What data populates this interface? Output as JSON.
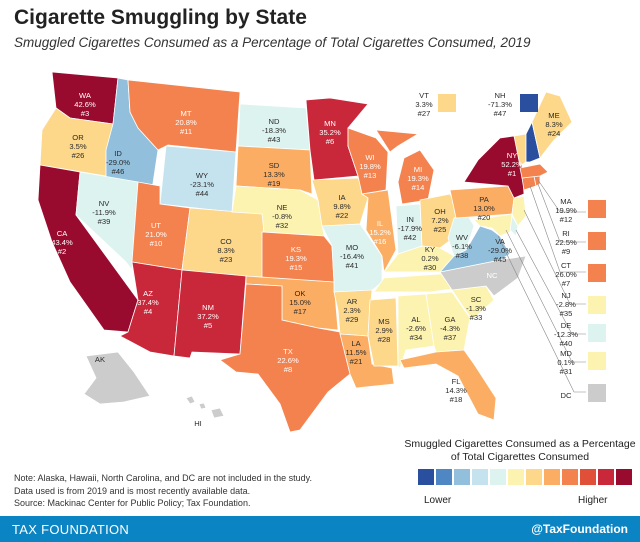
{
  "header": {
    "title": "Cigarette Smuggling by State",
    "subtitle": "Smuggled Cigarettes Consumed as a Percentage of Total Cigarettes Consumed, 2019"
  },
  "palette": [
    "#2a4f9e",
    "#4f86c4",
    "#92bfdc",
    "#c5e3ef",
    "#dcf3f0",
    "#fdf3b0",
    "#fdd78a",
    "#fbae63",
    "#f4824e",
    "#e04f38",
    "#c8283a",
    "#990b2e"
  ],
  "states": [
    {
      "abbr": "WA",
      "value": "42.6%",
      "rank": "#3",
      "bin": 11
    },
    {
      "abbr": "OR",
      "value": "3.5%",
      "rank": "#26",
      "bin": 6
    },
    {
      "abbr": "CA",
      "value": "43.4%",
      "rank": "#2",
      "bin": 11
    },
    {
      "abbr": "ID",
      "value": "-29.0%",
      "rank": "#46",
      "bin": 2
    },
    {
      "abbr": "NV",
      "value": "-11.9%",
      "rank": "#39",
      "bin": 4
    },
    {
      "abbr": "MT",
      "value": "20.8%",
      "rank": "#11",
      "bin": 8
    },
    {
      "abbr": "WY",
      "value": "-23.1%",
      "rank": "#44",
      "bin": 3
    },
    {
      "abbr": "UT",
      "value": "21.0%",
      "rank": "#10",
      "bin": 8
    },
    {
      "abbr": "AZ",
      "value": "37.4%",
      "rank": "#4",
      "bin": 10
    },
    {
      "abbr": "CO",
      "value": "8.3%",
      "rank": "#23",
      "bin": 6
    },
    {
      "abbr": "NM",
      "value": "37.2%",
      "rank": "#5",
      "bin": 10
    },
    {
      "abbr": "ND",
      "value": "-18.3%",
      "rank": "#43",
      "bin": 4
    },
    {
      "abbr": "SD",
      "value": "13.3%",
      "rank": "#19",
      "bin": 7
    },
    {
      "abbr": "NE",
      "value": "-0.8%",
      "rank": "#32",
      "bin": 5
    },
    {
      "abbr": "KS",
      "value": "19.3%",
      "rank": "#15",
      "bin": 8
    },
    {
      "abbr": "OK",
      "value": "15.0%",
      "rank": "#17",
      "bin": 7
    },
    {
      "abbr": "TX",
      "value": "22.6%",
      "rank": "#8",
      "bin": 8
    },
    {
      "abbr": "MN",
      "value": "35.2%",
      "rank": "#6",
      "bin": 10
    },
    {
      "abbr": "IA",
      "value": "9.8%",
      "rank": "#22",
      "bin": 6
    },
    {
      "abbr": "MO",
      "value": "-16.4%",
      "rank": "#41",
      "bin": 4
    },
    {
      "abbr": "AR",
      "value": "2.3%",
      "rank": "#29",
      "bin": 6
    },
    {
      "abbr": "LA",
      "value": "11.5%",
      "rank": "#21",
      "bin": 7
    },
    {
      "abbr": "WI",
      "value": "19.8%",
      "rank": "#13",
      "bin": 8
    },
    {
      "abbr": "IL",
      "value": "15.2%",
      "rank": "#16",
      "bin": 7
    },
    {
      "abbr": "MS",
      "value": "2.9%",
      "rank": "#28",
      "bin": 6
    },
    {
      "abbr": "MI",
      "value": "19.3%",
      "rank": "#14",
      "bin": 8
    },
    {
      "abbr": "IN",
      "value": "-17.9%",
      "rank": "#42",
      "bin": 4
    },
    {
      "abbr": "OH",
      "value": "7.2%",
      "rank": "#25",
      "bin": 6
    },
    {
      "abbr": "KY",
      "value": "0.2%",
      "rank": "#30",
      "bin": 5
    },
    {
      "abbr": "TN",
      "value": "-3.2%",
      "rank": "#36",
      "bin": 5
    },
    {
      "abbr": "AL",
      "value": "-2.6%",
      "rank": "#34",
      "bin": 5
    },
    {
      "abbr": "GA",
      "value": "-4.3%",
      "rank": "#37",
      "bin": 5
    },
    {
      "abbr": "FL",
      "value": "14.3%",
      "rank": "#18",
      "bin": 7
    },
    {
      "abbr": "SC",
      "value": "-1.3%",
      "rank": "#33",
      "bin": 5
    },
    {
      "abbr": "WV",
      "value": "-6.1%",
      "rank": "#38",
      "bin": 4
    },
    {
      "abbr": "VA",
      "value": "-29.0%",
      "rank": "#45",
      "bin": 2
    },
    {
      "abbr": "PA",
      "value": "13.0%",
      "rank": "#20",
      "bin": 7
    },
    {
      "abbr": "NY",
      "value": "52.2%",
      "rank": "#1",
      "bin": 11
    },
    {
      "abbr": "ME",
      "value": "8.3%",
      "rank": "#24",
      "bin": 6
    },
    {
      "abbr": "VT",
      "value": "3.3%",
      "rank": "#27",
      "bin": 6
    },
    {
      "abbr": "NH",
      "value": "-71.3%",
      "rank": "#47",
      "bin": 0
    },
    {
      "abbr": "MA",
      "value": "19.9%",
      "rank": "#12",
      "bin": 8
    },
    {
      "abbr": "RI",
      "value": "22.5%",
      "rank": "#9",
      "bin": 8
    },
    {
      "abbr": "CT",
      "value": "26.0%",
      "rank": "#7",
      "bin": 8
    },
    {
      "abbr": "NJ",
      "value": "-2.8%",
      "rank": "#35",
      "bin": 5
    },
    {
      "abbr": "DE",
      "value": "-12.3%",
      "rank": "#40",
      "bin": 4
    },
    {
      "abbr": "MD",
      "value": "0.1%",
      "rank": "#31",
      "bin": 5
    }
  ],
  "not_included": {
    "NC": "NC",
    "AK": "AK",
    "HI": "HI",
    "DC": "DC"
  },
  "legend": {
    "title": "Smuggled Cigarettes Consumed as a Percentage of Total Cigarettes Consumed",
    "low_label": "Lower",
    "high_label": "Higher"
  },
  "notes": [
    "Note: Alaska, Hawaii, North Carolina, and DC are not included in the study.",
    "Data used is from 2019 and is most recently available data.",
    "Source: Mackinac Center for Public Policy; Tax Foundation."
  ],
  "footer": {
    "brand": "TAX FOUNDATION",
    "handle": "@TaxFoundation"
  }
}
